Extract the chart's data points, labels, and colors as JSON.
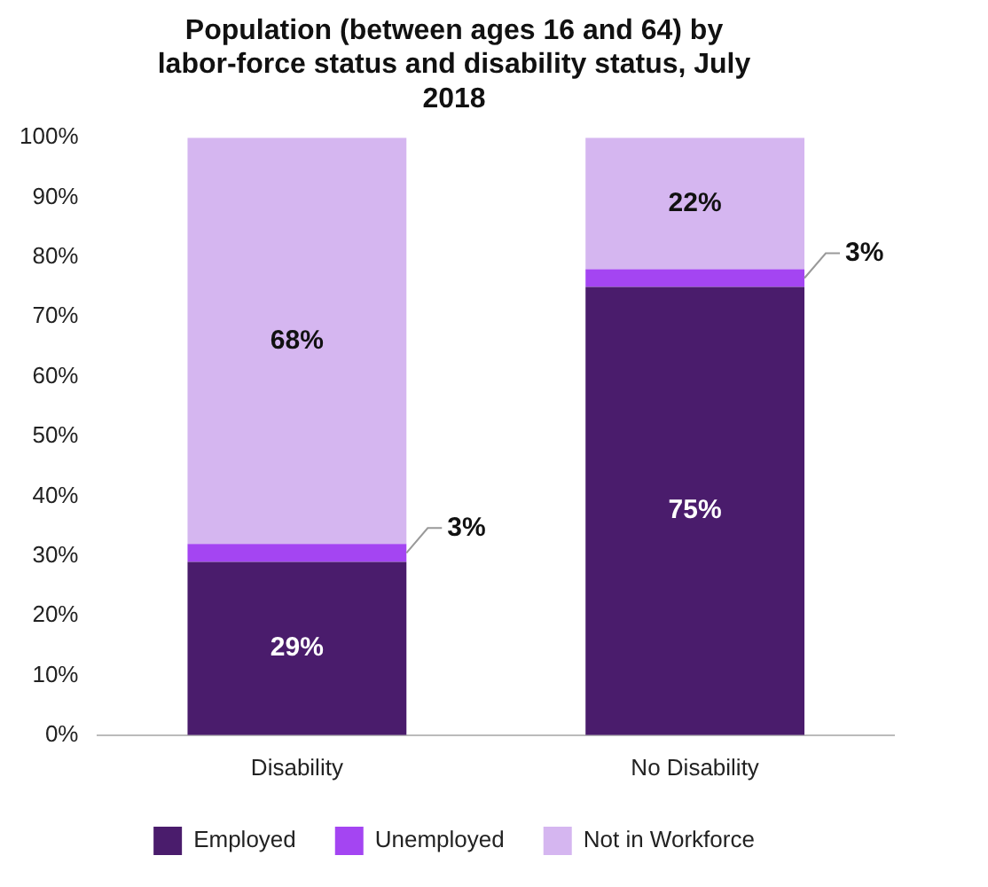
{
  "chart_data": {
    "type": "bar",
    "title": "Population (between ages 16 and 64) by labor-force status and disability status, July 2018",
    "categories": [
      "Disability",
      "No Disability"
    ],
    "stacked": true,
    "series": [
      {
        "name": "Employed",
        "color": "#4a1c6c",
        "values": [
          29,
          75
        ],
        "value_labels": [
          "29%",
          "75%"
        ]
      },
      {
        "name": "Unemployed",
        "color": "#a445f2",
        "values": [
          3,
          3
        ],
        "value_labels": [
          "3%",
          "3%"
        ]
      },
      {
        "name": "Not in Workforce",
        "color": "#d5b6f0",
        "values": [
          68,
          22
        ],
        "value_labels": [
          "68%",
          "22%"
        ]
      }
    ],
    "ylim": [
      0,
      100
    ],
    "yticks": [
      {
        "value": 0,
        "label": "0%"
      },
      {
        "value": 10,
        "label": "10%"
      },
      {
        "value": 20,
        "label": "20%"
      },
      {
        "value": 30,
        "label": "30%"
      },
      {
        "value": 40,
        "label": "40%"
      },
      {
        "value": 50,
        "label": "50%"
      },
      {
        "value": 60,
        "label": "60%"
      },
      {
        "value": 70,
        "label": "70%"
      },
      {
        "value": 80,
        "label": "80%"
      },
      {
        "value": 90,
        "label": "90%"
      },
      {
        "value": 100,
        "label": "100%"
      }
    ],
    "grid": false,
    "legend": "bottom"
  }
}
